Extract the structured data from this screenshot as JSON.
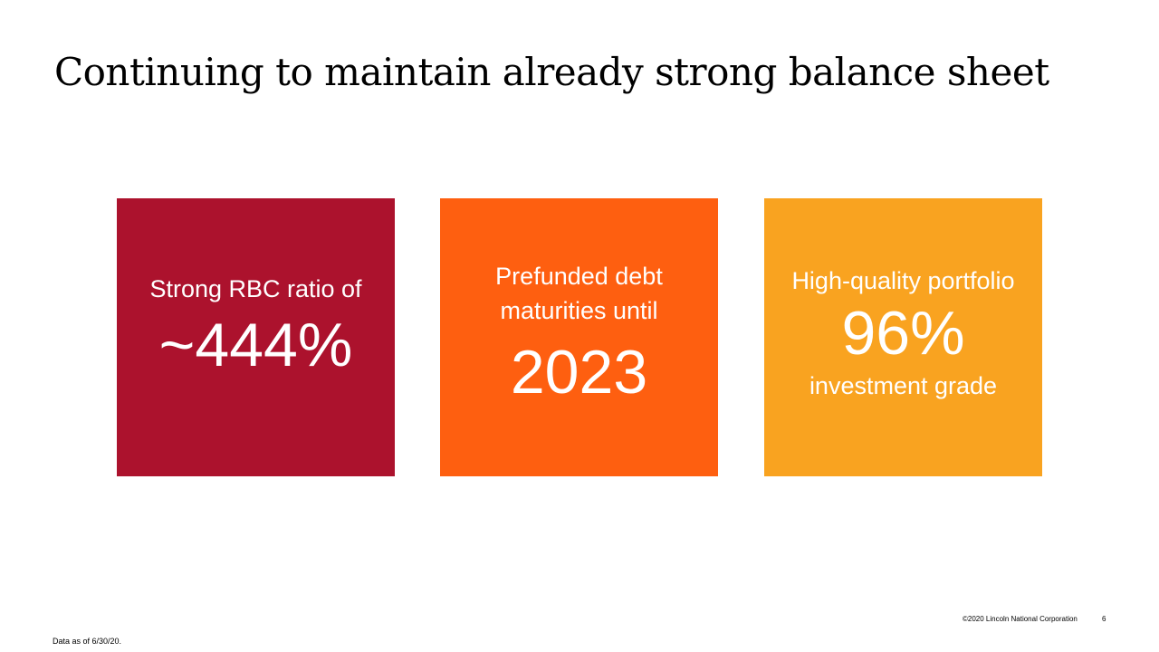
{
  "slide": {
    "title": "Continuing to maintain already strong balance sheet",
    "tiles": [
      {
        "lines_before": [
          "Strong RBC ratio of"
        ],
        "big_value": "~444%",
        "lines_after": [],
        "color": "#ac122d"
      },
      {
        "lines_before": [
          "Prefunded debt",
          "maturities until"
        ],
        "big_value": "2023",
        "lines_after": [],
        "color": "#fe5f10"
      },
      {
        "lines_before": [
          "High-quality portfolio"
        ],
        "big_value": "96%",
        "lines_after": [
          "investment grade"
        ],
        "color": "#f9a320"
      }
    ],
    "footnote": "Data as of 6/30/20.",
    "copyright": "©2020 Lincoln National Corporation",
    "page_number": "6"
  }
}
